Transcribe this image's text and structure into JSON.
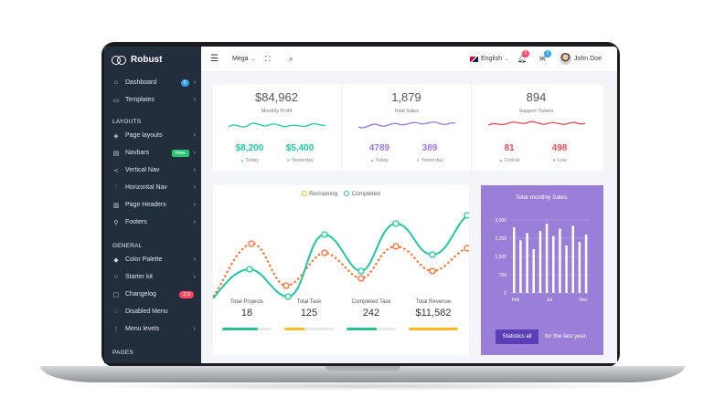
{
  "brand": {
    "name": "Robust"
  },
  "sidebar": {
    "items": [
      {
        "label": "Dashboard",
        "icon": "home-icon",
        "badge": "5",
        "badge_color": "blue"
      },
      {
        "label": "Templates",
        "icon": "monitor-icon"
      }
    ],
    "layouts_head": "LAYOUTS",
    "layouts": [
      {
        "label": "Page layouts",
        "icon": "layers-icon"
      },
      {
        "label": "Navbars",
        "icon": "navbar-icon",
        "badge": "New",
        "badge_color": "green"
      },
      {
        "label": "Vertical Nav",
        "icon": "share-icon"
      },
      {
        "label": "Horizontal Nav",
        "icon": "sliders-icon"
      },
      {
        "label": "Page Headers",
        "icon": "header-icon"
      },
      {
        "label": "Footers",
        "icon": "footer-icon"
      }
    ],
    "general_head": "GENERAL",
    "general": [
      {
        "label": "Color Palette",
        "icon": "drop-icon"
      },
      {
        "label": "Starter kit",
        "icon": "bulb-icon"
      },
      {
        "label": "Changelog",
        "icon": "clipboard-icon",
        "badge": "2.0",
        "badge_color": "red"
      },
      {
        "label": "Disabled Menu",
        "icon": "eye-off-icon"
      },
      {
        "label": "Menu levels",
        "icon": "more-vertical-icon"
      }
    ],
    "pages_head": "PAGES"
  },
  "topbar": {
    "mega": "Mega",
    "language": "English",
    "notif_count": "5",
    "mail_count": "3",
    "user": "John Doe"
  },
  "stats": [
    {
      "value": "$84,962",
      "label": "Monthly Profit",
      "color": "#1dc9a0",
      "sub": [
        {
          "value": "$8,200",
          "label": "Today",
          "arrow": "▲"
        },
        {
          "value": "$5,400",
          "label": "Yesterday",
          "arrow": "▼"
        }
      ]
    },
    {
      "value": "1,879",
      "label": "Total Sales",
      "color": "#967adc",
      "sub": [
        {
          "value": "4789",
          "label": "Today",
          "arrow": "▲"
        },
        {
          "value": "389",
          "label": "Yesterday",
          "arrow": "▼"
        }
      ]
    },
    {
      "value": "894",
      "label": "Support Tickets",
      "color": "#ea4b5a",
      "sub": [
        {
          "value": "81",
          "label": "Critical",
          "arrow": "▲"
        },
        {
          "value": "498",
          "label": "Low",
          "arrow": "▼"
        }
      ]
    }
  ],
  "line_chart": {
    "legend": [
      "Remaining",
      "Completed"
    ],
    "colors": {
      "remaining": "#ff6a2b",
      "completed": "#1dc9a0"
    }
  },
  "totals": [
    {
      "label": "Total Projects",
      "value": "18",
      "progress": 0.72,
      "color": "#28c08f"
    },
    {
      "label": "Total Task",
      "value": "125",
      "progress": 0.4,
      "color": "#f7b924"
    },
    {
      "label": "Completed Task",
      "value": "242",
      "progress": 0.62,
      "color": "#28c08f"
    },
    {
      "label": "Total Revenue",
      "value": "$11,582",
      "progress": 1.0,
      "color": "#f7b924"
    }
  ],
  "sales_chart": {
    "title": "Total monthly Sales.",
    "y_ticks": [
      "3,000",
      "2,250",
      "1,500",
      "750",
      "0"
    ],
    "x_ticks": [
      "Feb",
      "Jul",
      "Dec"
    ],
    "button": "Statistics all",
    "footer": "for the last year."
  }
}
